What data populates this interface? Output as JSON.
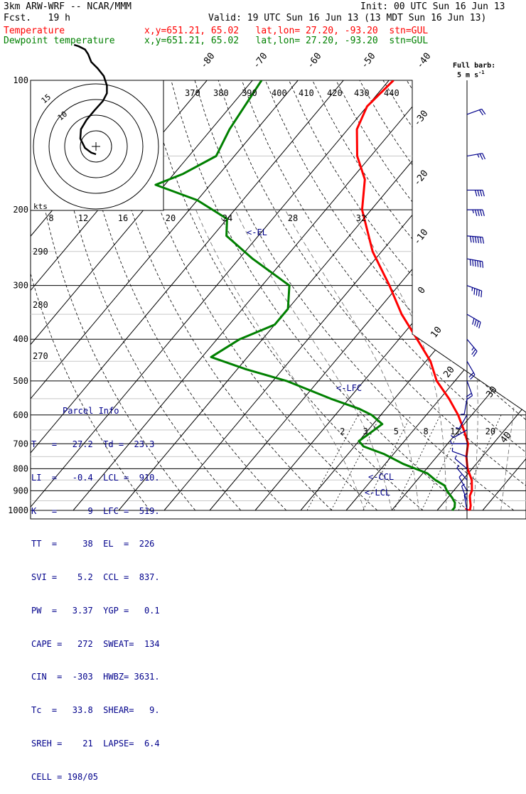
{
  "header": {
    "model": "3km ARW-WRF -- NCAR/MMM",
    "init": "Init: 00 UTC Sun 16 Jun 13",
    "fcst": "Fcst.   19 h",
    "valid": "Valid: 19 UTC Sun 16 Jun 13 (13 MDT Sun 16 Jun 13)",
    "temp_label": "Temperature",
    "temp_info": "x,y=651.21, 65.02   lat,lon= 27.20, -93.20  stn=GUL",
    "dew_label": "Dewpoint temperature",
    "dew_info": "x,y=651.21, 65.02   lat,lon= 27.20, -93.20  stn=GUL"
  },
  "colors": {
    "temperature": "#ff0000",
    "dewpoint": "#008000",
    "annotation": "#00008b",
    "grid": "#000000"
  },
  "barb_legend": {
    "title": "Full barb:",
    "value": "5 m s",
    "sup": "-1"
  },
  "chart_data": {
    "type": "line",
    "title": "",
    "pressure_labels": [
      "100",
      "200",
      "300",
      "400",
      "500",
      "600",
      "700",
      "800",
      "900",
      "1000"
    ],
    "pressure_levels": [
      100,
      200,
      300,
      400,
      500,
      600,
      700,
      800,
      900,
      1000
    ],
    "isotherm_labels_top": [
      "-80",
      "-70",
      "-60",
      "-50",
      "-40"
    ],
    "isotherm_labels_right": [
      "-30",
      "-20",
      "-10",
      "0",
      "10",
      "20",
      "30",
      "40"
    ],
    "theta_labels": [
      "370",
      "380",
      "390",
      "400",
      "410",
      "420",
      "430",
      "440"
    ],
    "theta_left_labels": [
      "290",
      "280",
      "270"
    ],
    "mixing_ratio_labels": [
      "2",
      "3",
      "5",
      "8",
      "12",
      "20"
    ],
    "hodograph": {
      "units": "kts",
      "ring_labels": [
        "15",
        "10"
      ],
      "speed_labels": [
        "8",
        "12",
        "16",
        "20",
        "24",
        "28",
        "32"
      ]
    },
    "markers": [
      "<-EL",
      "<-LFC",
      "<-CCL",
      "<-LCL"
    ],
    "series": [
      {
        "name": "Temperature",
        "points": [
          [
            100,
            -69
          ],
          [
            115,
            -70
          ],
          [
            130,
            -68
          ],
          [
            150,
            -63
          ],
          [
            170,
            -57
          ],
          [
            200,
            -52
          ],
          [
            250,
            -42
          ],
          [
            300,
            -32
          ],
          [
            350,
            -24
          ],
          [
            400,
            -16
          ],
          [
            450,
            -9
          ],
          [
            500,
            -4
          ],
          [
            550,
            2
          ],
          [
            600,
            7
          ],
          [
            650,
            11
          ],
          [
            700,
            14.5
          ],
          [
            750,
            16.5
          ],
          [
            800,
            19
          ],
          [
            850,
            22
          ],
          [
            900,
            24
          ],
          [
            925,
            24.5
          ],
          [
            950,
            25.5
          ],
          [
            975,
            26.5
          ],
          [
            1000,
            27.2
          ]
        ]
      },
      {
        "name": "Dewpoint temperature",
        "points": [
          [
            100,
            -98
          ],
          [
            130,
            -96
          ],
          [
            150,
            -94
          ],
          [
            165,
            -98
          ],
          [
            175,
            -102
          ],
          [
            190,
            -90
          ],
          [
            210,
            -80
          ],
          [
            230,
            -77
          ],
          [
            260,
            -67
          ],
          [
            300,
            -54
          ],
          [
            340,
            -50
          ],
          [
            370,
            -50
          ],
          [
            400,
            -55
          ],
          [
            440,
            -58
          ],
          [
            470,
            -48
          ],
          [
            500,
            -37
          ],
          [
            550,
            -24
          ],
          [
            580,
            -16
          ],
          [
            600,
            -12
          ],
          [
            630,
            -8
          ],
          [
            660,
            -9
          ],
          [
            690,
            -10
          ],
          [
            710,
            -8
          ],
          [
            740,
            -2
          ],
          [
            780,
            4
          ],
          [
            820,
            11
          ],
          [
            850,
            14
          ],
          [
            875,
            17
          ],
          [
            900,
            18.5
          ],
          [
            935,
            21
          ],
          [
            960,
            22.5
          ],
          [
            985,
            23.3
          ],
          [
            1000,
            23.3
          ]
        ]
      }
    ],
    "hodo_points": [
      [
        0.0,
        -2.5
      ],
      [
        -1.5,
        -2.0
      ],
      [
        -3.5,
        -0.5
      ],
      [
        -5.0,
        2.5
      ],
      [
        -4.8,
        5.5
      ],
      [
        -3.0,
        8.5
      ],
      [
        -0.5,
        11.5
      ],
      [
        2.2,
        14.5
      ],
      [
        3.5,
        17.0
      ],
      [
        3.5,
        19.5
      ],
      [
        2.5,
        22.5
      ],
      [
        0.5,
        25.0
      ],
      [
        -1.5,
        27.0
      ],
      [
        -2.5,
        29.5
      ],
      [
        -3.5,
        31.0
      ],
      [
        -5.5,
        32.0
      ],
      [
        -7.0,
        32.5
      ]
    ],
    "hodo_low": [
      [
        0.0,
        -2.5
      ],
      [
        -1.5,
        -2.0
      ],
      [
        -3.5,
        -0.5
      ],
      [
        -5.0,
        2.5
      ],
      [
        -4.8,
        5.5
      ],
      [
        -3.0,
        8.5
      ],
      [
        -0.5,
        11.5
      ],
      [
        2.2,
        14.5
      ],
      [
        3.5,
        17.0
      ]
    ],
    "wind_barbs": [
      {
        "p": 120,
        "dir": 250,
        "spd": 10
      },
      {
        "p": 150,
        "dir": 260,
        "spd": 15
      },
      {
        "p": 180,
        "dir": 270,
        "spd": 20
      },
      {
        "p": 200,
        "dir": 270,
        "spd": 25
      },
      {
        "p": 230,
        "dir": 275,
        "spd": 30
      },
      {
        "p": 260,
        "dir": 280,
        "spd": 30
      },
      {
        "p": 300,
        "dir": 290,
        "spd": 25
      },
      {
        "p": 350,
        "dir": 300,
        "spd": 20
      },
      {
        "p": 400,
        "dir": 320,
        "spd": 15
      },
      {
        "p": 450,
        "dir": 330,
        "spd": 10
      },
      {
        "p": 500,
        "dir": 340,
        "spd": 10
      },
      {
        "p": 550,
        "dir": 10,
        "spd": 5
      },
      {
        "p": 600,
        "dir": 30,
        "spd": 5
      },
      {
        "p": 650,
        "dir": 60,
        "spd": 5
      },
      {
        "p": 700,
        "dir": 90,
        "spd": 5
      },
      {
        "p": 750,
        "dir": 110,
        "spd": 5
      },
      {
        "p": 800,
        "dir": 130,
        "spd": 5
      },
      {
        "p": 850,
        "dir": 140,
        "spd": 5
      },
      {
        "p": 900,
        "dir": 150,
        "spd": 5
      },
      {
        "p": 950,
        "dir": 160,
        "spd": 5
      },
      {
        "p": 1000,
        "dir": 170,
        "spd": 5
      }
    ]
  },
  "parcel": {
    "title": "Parcel Info",
    "rows": [
      "T   =   27.2  Td =  23.3",
      "LI  =   -0.4  LCL =  910.",
      "K   =      9  LFC =  519.",
      "TT  =     38  EL  =  226",
      "SVI =    5.2  CCL =  837.",
      "PW  =   3.37  YGP =   0.1",
      "CAPE =   272  SWEAT=  134",
      "CIN  =  -303  HWBZ= 3631.",
      "Tc  =   33.8  SHEAR=   9.",
      "SREH =    21  LAPSE=  6.4",
      "CELL = 198/05"
    ]
  }
}
